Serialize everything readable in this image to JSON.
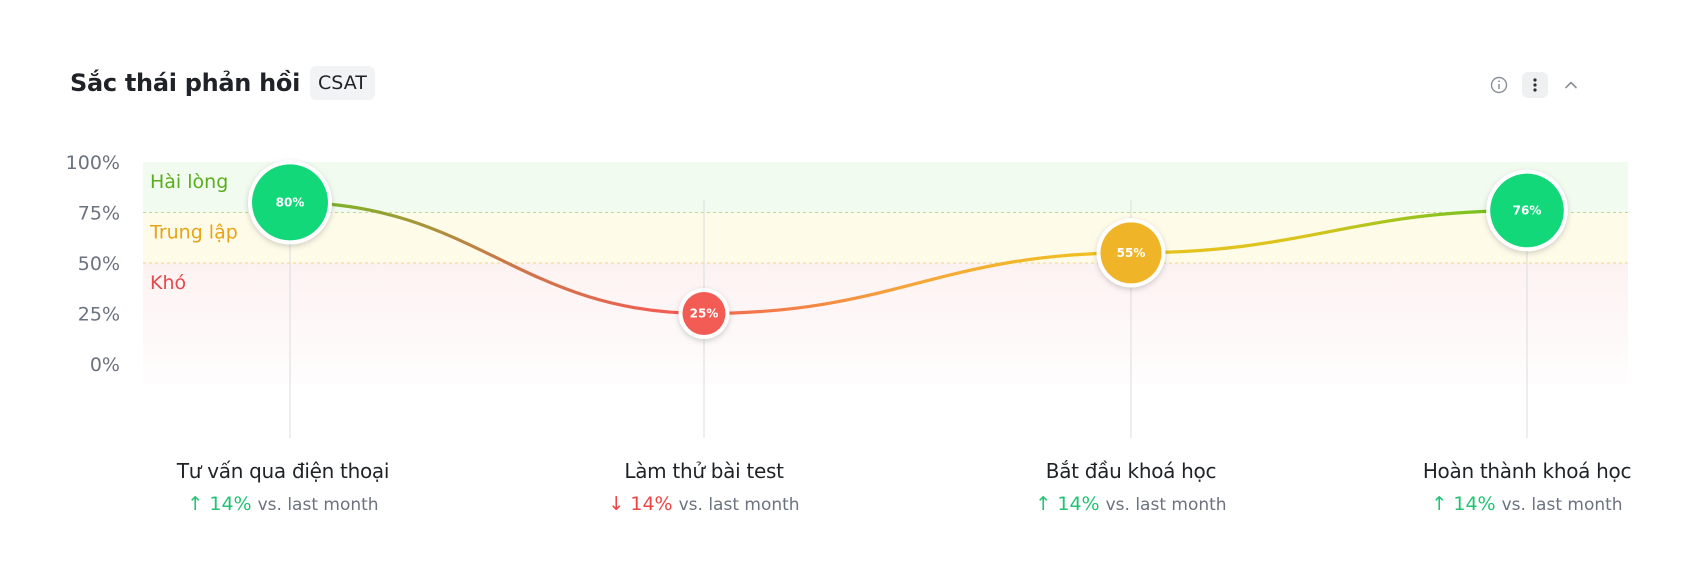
{
  "header": {
    "title": "Sắc thái phản hồi",
    "badge": "CSAT"
  },
  "colors": {
    "positive": "#12d87a",
    "neutral": "#f0b429",
    "negative": "#f25c54",
    "zone_positive": "#f2fbef",
    "zone_neutral": "#fefbe9",
    "zone_negative": "#fdf2f2"
  },
  "icons": [
    "info-icon",
    "more-vertical-icon",
    "chevron-up-icon"
  ],
  "chart_data": {
    "type": "line",
    "ylim": [
      0,
      100
    ],
    "yticks": [
      "100%",
      "75%",
      "50%",
      "25%",
      "0%"
    ],
    "ytick_values": [
      100,
      75,
      50,
      25,
      0
    ],
    "zones": [
      {
        "label": "Hài lòng",
        "from": 75,
        "to": 100,
        "color": "#5aae1e"
      },
      {
        "label": "Trung lập",
        "from": 50,
        "to": 75,
        "color": "#e8a317"
      },
      {
        "label": "Khó",
        "from": 0,
        "to": 50,
        "color": "#e5484d"
      }
    ],
    "categories": [
      "Tư vấn qua điện thoại",
      "Làm thử bài test",
      "Bắt đầu khoá học",
      "Hoàn thành khoá học"
    ],
    "values": [
      80,
      25,
      55,
      76
    ],
    "point_labels": [
      "80%",
      "25%",
      "55%",
      "76%"
    ],
    "deltas": [
      {
        "direction": "up",
        "arrow": "↑",
        "value": "14%",
        "suffix": "vs. last month"
      },
      {
        "direction": "down",
        "arrow": "↓",
        "value": "14%",
        "suffix": "vs. last month"
      },
      {
        "direction": "up",
        "arrow": "↑",
        "value": "14%",
        "suffix": "vs. last month"
      },
      {
        "direction": "up",
        "arrow": "↑",
        "value": "14%",
        "suffix": "vs. last month"
      }
    ]
  }
}
